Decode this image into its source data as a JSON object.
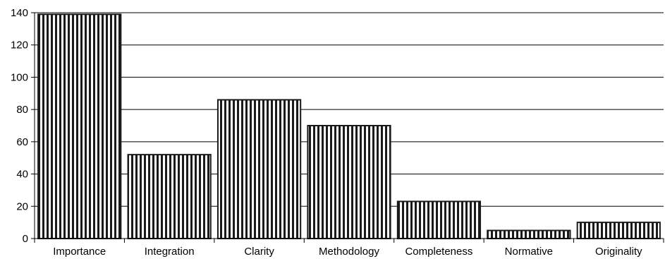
{
  "chart_data": {
    "type": "bar",
    "title": "",
    "xlabel": "",
    "ylabel": "",
    "categories": [
      "Importance",
      "Integration",
      "Clarity",
      "Methodology",
      "Completeness",
      "Normative",
      "Originality"
    ],
    "values": [
      139,
      52,
      86,
      70,
      23,
      5,
      10
    ],
    "ylim": [
      0,
      140
    ],
    "yticks": [
      0,
      20,
      40,
      60,
      80,
      100,
      120,
      140
    ],
    "grid": true,
    "bar_fill": "vertical-stripes",
    "colors": {
      "bar_stroke": "#1a1a1a",
      "bar_stripe": "#1a1a1a",
      "bar_background": "#ffffff",
      "grid": "#000000"
    }
  }
}
